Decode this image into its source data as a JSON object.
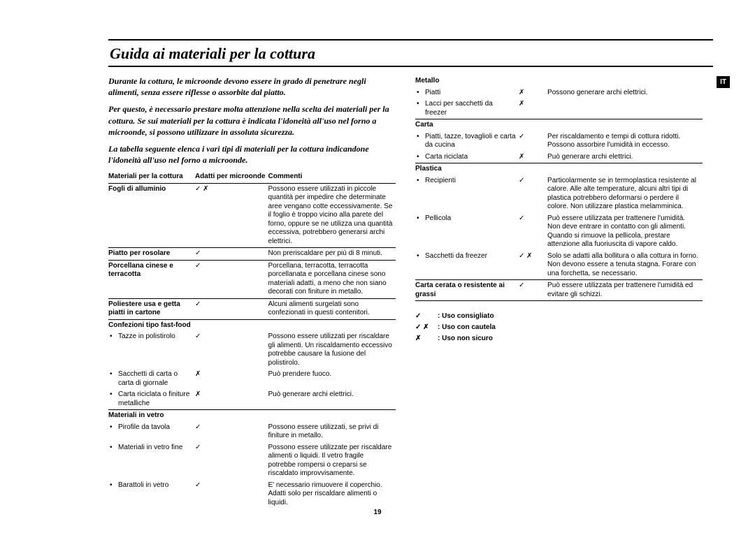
{
  "page": {
    "title": "Guida ai materiali per la cottura",
    "lang_tab": "IT",
    "page_number": "19"
  },
  "intro": {
    "p1": "Durante la cottura, le microonde devono essere in grado di penetrare negli alimenti, senza essere riflesse o assorbite dal piatto.",
    "p2": "Per questo, è necessario prestare molta attenzione nella scelta dei materiali per la cottura. Se sui materiali per la cottura è indicata l'idoneità all'uso nel forno a microonde, si possono utilizzare in assoluta sicurezza.",
    "p3": "La tabella seguente elenca i vari tipi di materiali per la cottura indicandone l'idoneità all'uso nel forno a microonde."
  },
  "headers": {
    "material": "Materiali per la cottura",
    "rating": "Adatti per microonde",
    "comment": "Commenti"
  },
  "rows_left": [
    {
      "type": "row",
      "material": "Fogli di alluminio",
      "rating": "✓ ✗",
      "comment": "Possono essere utilizzati in piccole quantità per impedire che determinate aree vengano cotte eccessivamente. Se il foglio è troppo vicino alla parete del forno, oppure se ne utilizza una quantità eccessiva, potrebbero generarsi archi elettrici."
    },
    {
      "type": "row",
      "material": "Piatto per rosolare",
      "rating": "✓",
      "comment": "Non preriscaldare per più di 8 minuti."
    },
    {
      "type": "row",
      "material": "Porcellana cinese e terracotta",
      "rating": "✓",
      "comment": "Porcellana, terracotta, terracotta porcellanata e porcellana cinese sono materiali adatti, a meno che non siano decorati con finiture in metallo."
    },
    {
      "type": "row",
      "material": "Poliestere usa e getta piatti in cartone",
      "rating": "✓",
      "comment": "Alcuni alimenti surgelati sono confezionati in questi contenitori."
    },
    {
      "type": "section",
      "label": "Confezioni tipo fast-food"
    },
    {
      "type": "sub",
      "material": "Tazze in polistirolo",
      "rating": "✓",
      "comment": "Possono essere utilizzati per riscaldare gli alimenti. Un riscaldamento eccessivo potrebbe causare la fusione del polistirolo."
    },
    {
      "type": "sub",
      "material": "Sacchetti di carta o carta di giornale",
      "rating": "✗",
      "comment": "Può prendere fuoco."
    },
    {
      "type": "sub",
      "material": "Carta riciclata o finiture metalliche",
      "rating": "✗",
      "comment": "Può generare archi elettrici.",
      "last": true
    },
    {
      "type": "section",
      "label": "Materiali in vetro"
    },
    {
      "type": "sub",
      "material": "Pirofile da tavola",
      "rating": "✓",
      "comment": "Possono essere utilizzati, se privi di finiture in metallo."
    },
    {
      "type": "sub",
      "material": "Materiali in vetro fine",
      "rating": "✓",
      "comment": "Possono essere utilizzate per riscaldare alimenti o liquidi. Il vetro fragile potrebbe rompersi o creparsi se riscaldato improvvisamente."
    },
    {
      "type": "sub",
      "material": "Barattoli in vetro",
      "rating": "✓",
      "comment": "E' necessario rimuovere il coperchio. Adatti solo per riscaldare alimenti o liquidi."
    }
  ],
  "rows_right": [
    {
      "type": "section",
      "label": "Metallo"
    },
    {
      "type": "sub",
      "material": "Piatti",
      "rating": "✗",
      "comment": "Possono generare archi elettrici."
    },
    {
      "type": "sub",
      "material": "Lacci per sacchetti da freezer",
      "rating": "✗",
      "comment": "",
      "last": true
    },
    {
      "type": "section",
      "label": "Carta"
    },
    {
      "type": "sub",
      "material": "Piatti, tazze, tovaglioli e carta da cucina",
      "rating": "✓",
      "comment": "Per riscaldamento e tempi di cottura ridotti. Possono assorbire l'umidità in eccesso."
    },
    {
      "type": "sub",
      "material": "Carta riciclata",
      "rating": "✗",
      "comment": "Può generare archi elettrici.",
      "last": true
    },
    {
      "type": "section",
      "label": "Plastica"
    },
    {
      "type": "sub",
      "material": "Recipienti",
      "rating": "✓",
      "comment": "Particolarmente se in termoplastica resistente al calore. Alle alte temperature, alcuni altri tipi di plastica potrebbero deformarsi o perdere il colore. Non utilizzare plastica melamminica."
    },
    {
      "type": "sub",
      "material": "Pellicola",
      "rating": "✓",
      "comment": "Può essere utilizzata per trattenere l'umidità. Non deve entrare in contatto con gli alimenti. Quando si rimuove la pellicola, prestare attenzione alla fuoriuscita di vapore caldo."
    },
    {
      "type": "sub",
      "material": "Sacchetti da freezer",
      "rating": "✓ ✗",
      "comment": "Solo se adatti alla bollitura o alla cottura in forno. Non devono essere a tenuta stagna. Forare con una forchetta, se necessario.",
      "last": true
    },
    {
      "type": "row",
      "material": "Carta cerata o resistente ai grassi",
      "rating": "✓",
      "comment": "Può essere utilizzata per trattenere l'umidità ed evitare gli schizzi."
    }
  ],
  "legend": {
    "r1_sym": "✓",
    "r1_text": ": Uso consigliato",
    "r2_sym": "✓ ✗",
    "r2_text": ": Uso con cautela",
    "r3_sym": "✗",
    "r3_text": ": Uso non sicuro"
  }
}
